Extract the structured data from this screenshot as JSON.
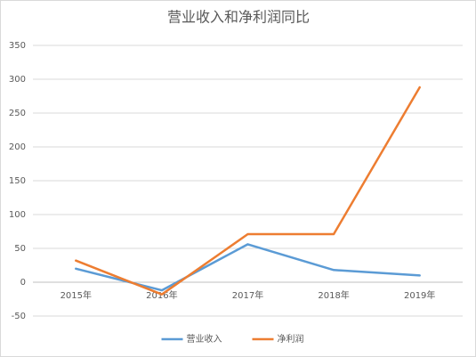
{
  "chart_data": {
    "type": "line",
    "title": "营业收入和净利润同比",
    "categories": [
      "2015年",
      "2016年",
      "2017年",
      "2018年",
      "2019年"
    ],
    "series": [
      {
        "name": "营业收入",
        "color": "#5b9bd5",
        "values": [
          20,
          -12,
          56,
          18,
          10
        ]
      },
      {
        "name": "净利润",
        "color": "#ed7d31",
        "values": [
          32,
          -18,
          71,
          71,
          288
        ]
      }
    ],
    "ylim": [
      -50,
      350
    ],
    "yticks": [
      -50,
      0,
      50,
      100,
      150,
      200,
      250,
      300,
      350
    ],
    "grid": true,
    "legend": "bottom"
  }
}
